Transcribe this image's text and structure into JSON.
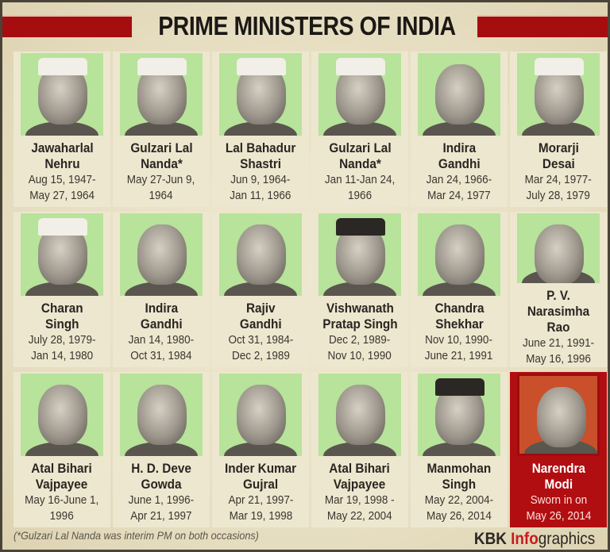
{
  "title": "PRIME MINISTERS OF INDIA",
  "colors": {
    "title_stripe": "#a50d0f",
    "photo_background": "#b7e39a",
    "highlight_card": "#b10e12",
    "card_background": "#ede7cf",
    "brand_accent": "#c91b1e"
  },
  "prime_ministers": [
    {
      "name": "Jawaharlal\nNehru",
      "dates": "Aug 15, 1947-\nMay 27, 1964",
      "photo": "portrait-nehru",
      "cap": "white"
    },
    {
      "name": "Gulzari Lal\nNanda*",
      "dates": "May 27-Jun 9,\n1964",
      "photo": "portrait-nanda",
      "cap": "white"
    },
    {
      "name": "Lal Bahadur\nShastri",
      "dates": "Jun 9, 1964-\nJan 11, 1966",
      "photo": "portrait-shastri",
      "cap": "white"
    },
    {
      "name": "Gulzari Lal\nNanda*",
      "dates": "Jan 11-Jan 24,\n1966",
      "photo": "portrait-nanda",
      "cap": "white"
    },
    {
      "name": "Indira\nGandhi",
      "dates": "Jan 24, 1966-\nMar 24, 1977",
      "photo": "portrait-indira-gandhi",
      "cap": "none"
    },
    {
      "name": "Morarji\nDesai",
      "dates": "Mar 24, 1977-\nJuly 28, 1979",
      "photo": "portrait-desai",
      "cap": "white"
    },
    {
      "name": "Charan\nSingh",
      "dates": "July 28, 1979-\nJan 14, 1980",
      "photo": "portrait-charan-singh",
      "cap": "white"
    },
    {
      "name": "Indira\nGandhi",
      "dates": "Jan 14, 1980-\nOct 31, 1984",
      "photo": "portrait-indira-gandhi",
      "cap": "none"
    },
    {
      "name": "Rajiv\nGandhi",
      "dates": "Oct 31, 1984-\nDec 2, 1989",
      "photo": "portrait-rajiv-gandhi",
      "cap": "none"
    },
    {
      "name": "Vishwanath\nPratap Singh",
      "dates": "Dec 2, 1989-\nNov 10, 1990",
      "photo": "portrait-vp-singh",
      "cap": "dark"
    },
    {
      "name": "Chandra\nShekhar",
      "dates": "Nov 10, 1990-\nJune 21, 1991",
      "photo": "portrait-chandra-shekhar",
      "cap": "none"
    },
    {
      "name": "P. V.\nNarasimha Rao",
      "dates": "June 21, 1991-\nMay 16, 1996",
      "photo": "portrait-narasimha-rao",
      "cap": "none"
    },
    {
      "name": "Atal Bihari\nVajpayee",
      "dates": "May 16-June 1,\n1996",
      "photo": "portrait-vajpayee",
      "cap": "none"
    },
    {
      "name": "H. D. Deve\nGowda",
      "dates": "June 1, 1996-\nApr 21, 1997",
      "photo": "portrait-deve-gowda",
      "cap": "none"
    },
    {
      "name": "Inder Kumar\nGujral",
      "dates": "Apr 21, 1997-\nMar 19, 1998",
      "photo": "portrait-gujral",
      "cap": "none"
    },
    {
      "name": "Atal Bihari\nVajpayee",
      "dates": "Mar 19, 1998 -\nMay 22, 2004",
      "photo": "portrait-vajpayee",
      "cap": "none"
    },
    {
      "name": "Manmohan\nSingh",
      "dates": "May 22, 2004-\nMay 26, 2014",
      "photo": "portrait-manmohan-singh",
      "cap": "dark"
    },
    {
      "name": "Narendra\nModi",
      "dates": "Sworn in on\nMay 26, 2014",
      "photo": "portrait-modi",
      "cap": "none",
      "highlight": true
    }
  ],
  "footnote": "(*Gulzari Lal Nanda was interim PM on both occasions)",
  "brand": {
    "kbk": "KBK ",
    "info": "Info",
    "graphics": "graphics"
  }
}
